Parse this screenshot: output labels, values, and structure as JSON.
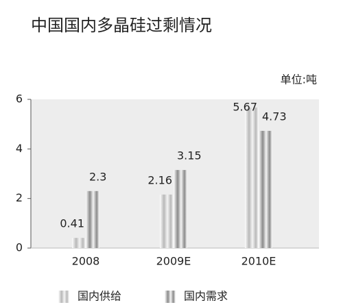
{
  "chart_data": {
    "type": "bar",
    "title": "中国国内多晶硅过剩情况",
    "unit": "单位:吨",
    "categories": [
      "2008",
      "2009E",
      "2010E"
    ],
    "series": [
      {
        "name": "国内供给",
        "color": "#b8b8b8",
        "values": [
          0.41,
          2.16,
          5.67
        ]
      },
      {
        "name": "国内需求",
        "color": "#8a8a8a",
        "values": [
          2.3,
          3.15,
          4.73
        ]
      }
    ],
    "ylim": [
      0,
      6
    ],
    "yticks": [
      0,
      2,
      4,
      6
    ],
    "grid": false
  }
}
